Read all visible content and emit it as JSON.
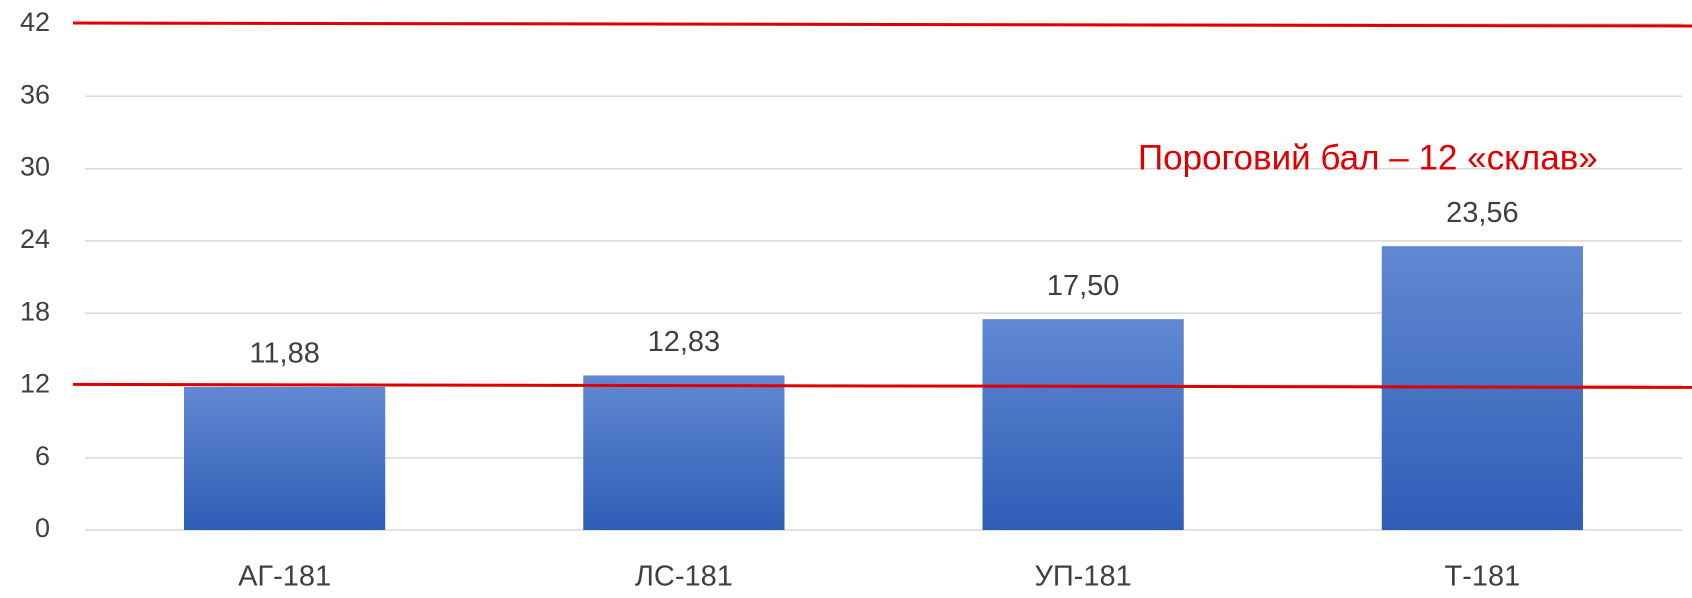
{
  "chart_data": {
    "type": "bar",
    "categories": [
      "АГ-181",
      "ЛС-181",
      "УП-181",
      "Т-181"
    ],
    "values": [
      11.88,
      12.83,
      17.5,
      23.56
    ],
    "value_labels": [
      "11,88",
      "12,83",
      "17,50",
      "23,56"
    ],
    "color": "#3f6fc6",
    "ylim": [
      0,
      42
    ],
    "yticks": [
      0,
      6,
      12,
      18,
      24,
      30,
      36,
      42
    ],
    "grid": true,
    "reference_lines": {
      "values": [
        12,
        42
      ],
      "color": "#e00000"
    },
    "annotation": "Пороговий бал – 12 «склав»"
  }
}
